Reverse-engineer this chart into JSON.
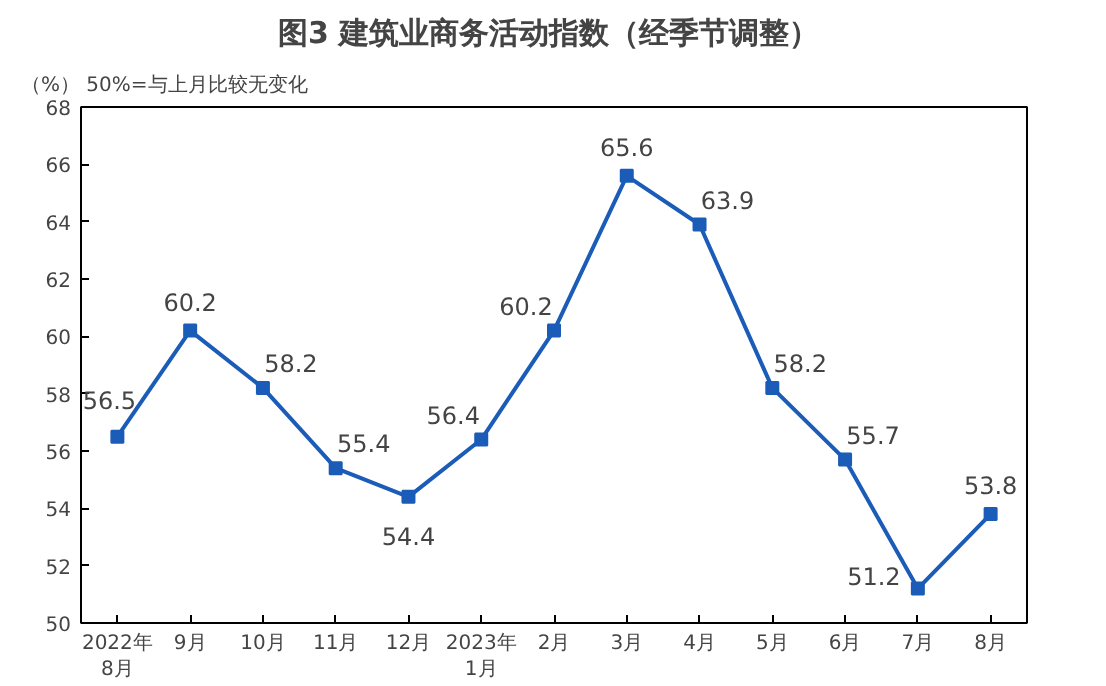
{
  "chart_data": {
    "type": "line",
    "title": "图3  建筑业商务活动指数（经季节调整）",
    "annotations": [
      "（%）  50%=与上月比较无变化"
    ],
    "categories": [
      "2022年\n8月",
      "9月",
      "10月",
      "11月",
      "12月",
      "2023年\n1月",
      "2月",
      "3月",
      "4月",
      "5月",
      "6月",
      "7月",
      "8月"
    ],
    "series": [
      {
        "color": "#1a5cb8",
        "values": [
          56.5,
          60.2,
          58.2,
          55.4,
          54.4,
          56.4,
          60.2,
          65.6,
          63.9,
          58.2,
          55.7,
          51.2,
          53.8
        ]
      }
    ],
    "ylim": [
      50,
      68
    ],
    "yticks": [
      50,
      52,
      54,
      56,
      58,
      60,
      62,
      64,
      66,
      68
    ],
    "data_labels": true,
    "marker": "square",
    "line_style": "solid",
    "grid": false
  }
}
